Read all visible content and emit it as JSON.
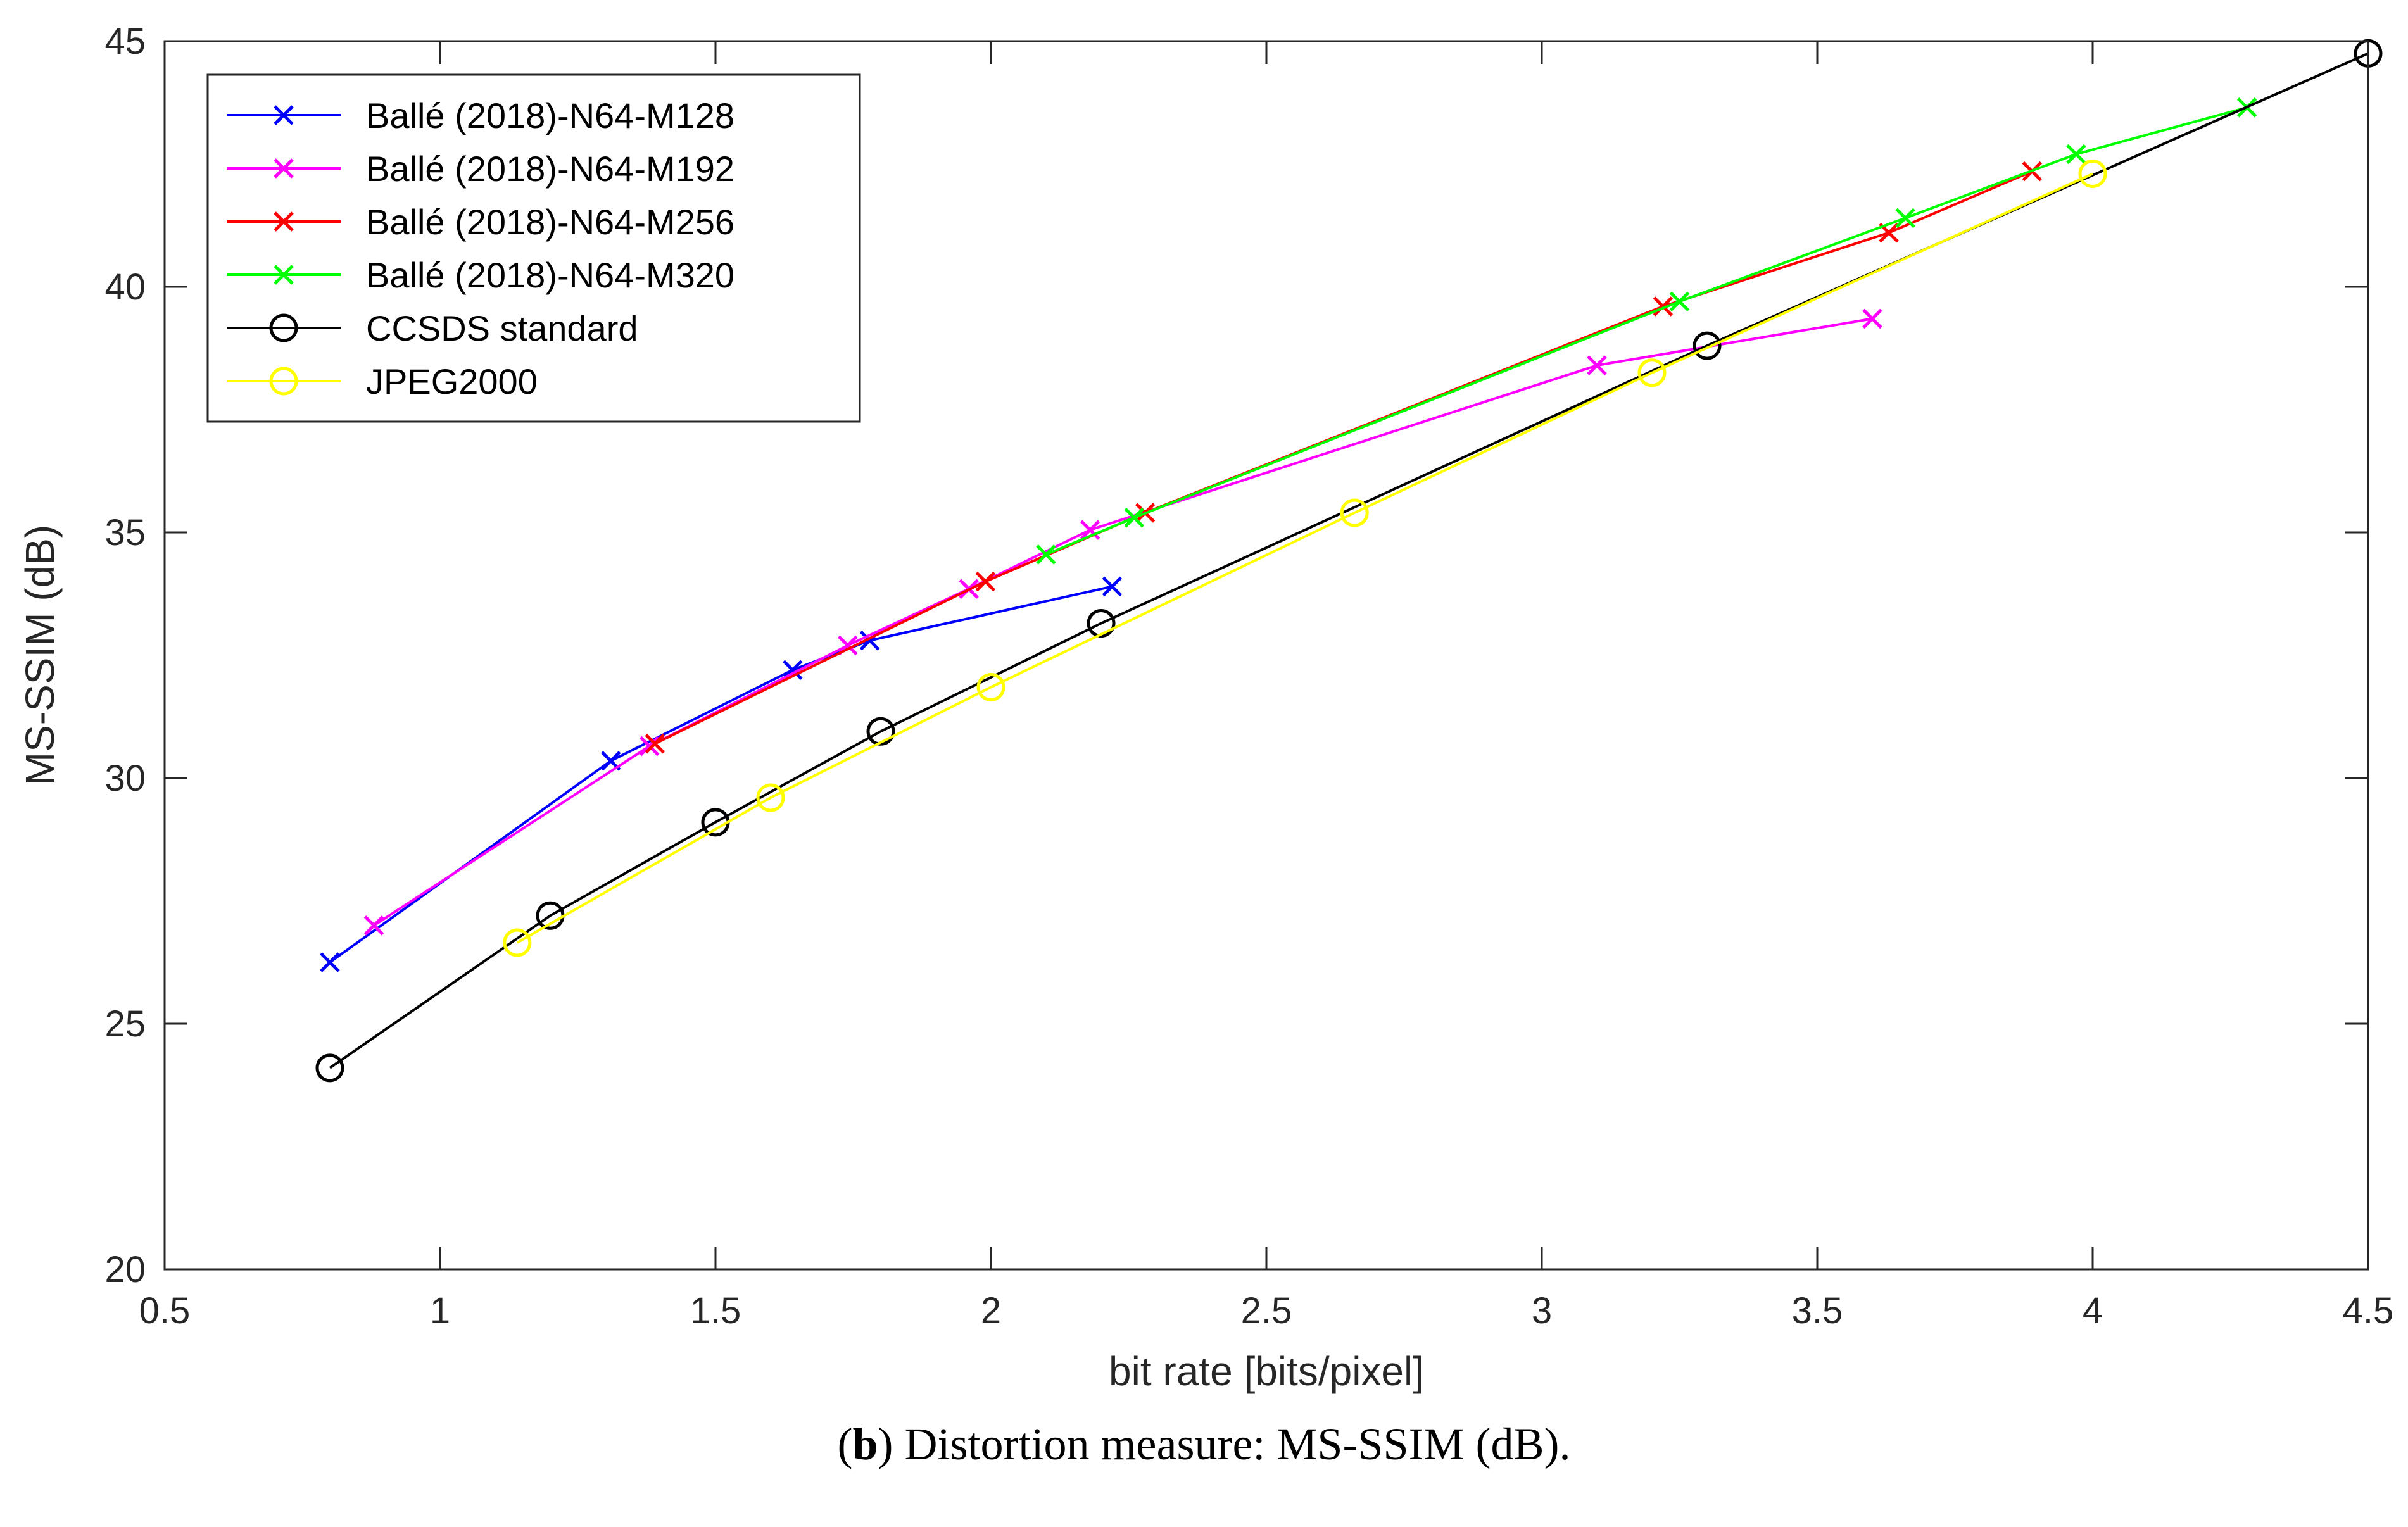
{
  "caption": {
    "label_open": "(",
    "label_letter": "b",
    "label_close": ")",
    "text": " Distortion measure: MS-SSIM (dB)."
  },
  "chart_data": {
    "type": "line",
    "title": "",
    "xlabel": "bit rate [bits/pixel]",
    "ylabel": "MS-SSIM (dB)",
    "xlim": [
      0.5,
      4.5
    ],
    "ylim": [
      20,
      45
    ],
    "xticks": [
      0.5,
      1,
      1.5,
      2,
      2.5,
      3,
      3.5,
      4,
      4.5
    ],
    "xtick_labels": [
      "0.5",
      "1",
      "1.5",
      "2",
      "2.5",
      "3",
      "3.5",
      "4",
      "4.5"
    ],
    "yticks": [
      20,
      25,
      30,
      35,
      40,
      45
    ],
    "ytick_labels": [
      "20",
      "25",
      "30",
      "35",
      "40",
      "45"
    ],
    "grid": false,
    "legend_position": "top-left",
    "series": [
      {
        "name": "Ballé (2018)-N64-M128",
        "color": "#0000ff",
        "marker": "x",
        "x": [
          0.8,
          1.31,
          1.64,
          1.78,
          2.22
        ],
        "y": [
          26.25,
          30.35,
          32.2,
          32.8,
          33.9
        ]
      },
      {
        "name": "Ballé (2018)-N64-M192",
        "color": "#ff00ff",
        "marker": "x",
        "x": [
          0.88,
          1.38,
          1.74,
          1.96,
          2.18,
          3.1,
          3.6
        ],
        "y": [
          27.0,
          30.65,
          32.7,
          33.85,
          35.05,
          38.4,
          39.35
        ]
      },
      {
        "name": "Ballé (2018)-N64-M256",
        "color": "#ff0000",
        "marker": "x",
        "x": [
          1.39,
          1.99,
          2.28,
          3.22,
          3.63,
          3.89
        ],
        "y": [
          30.7,
          34.0,
          35.4,
          39.6,
          41.1,
          42.35
        ]
      },
      {
        "name": "Ballé (2018)-N64-M320",
        "color": "#00ff00",
        "marker": "x",
        "x": [
          2.1,
          2.26,
          3.25,
          3.66,
          3.97,
          4.28
        ],
        "y": [
          34.55,
          35.3,
          39.7,
          41.4,
          42.7,
          43.65
        ]
      },
      {
        "name": "CCSDS standard",
        "color": "#000000",
        "marker": "o",
        "x": [
          0.8,
          1.2,
          1.5,
          1.8,
          2.2,
          3.3,
          4.5
        ],
        "y": [
          24.1,
          27.2,
          29.1,
          30.95,
          33.15,
          38.8,
          44.75
        ]
      },
      {
        "name": "JPEG2000",
        "color": "#ffff00",
        "marker": "o",
        "x": [
          1.14,
          1.6,
          2.0,
          2.66,
          3.2,
          4.0
        ],
        "y": [
          26.65,
          29.6,
          31.85,
          35.4,
          38.25,
          42.3
        ]
      }
    ]
  }
}
